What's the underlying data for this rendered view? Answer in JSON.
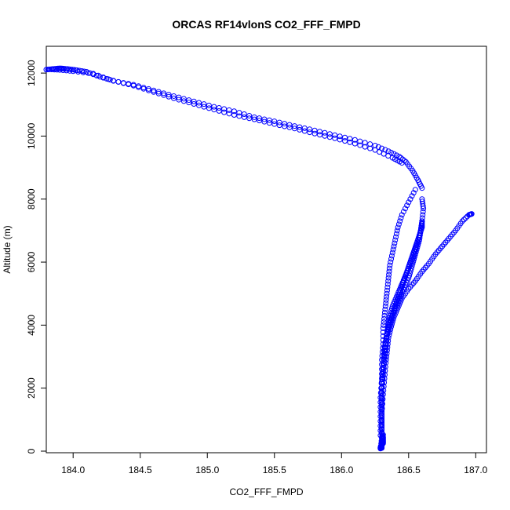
{
  "chart_data": {
    "type": "scatter",
    "title": "ORCAS RF14vlonS CO2_FFF_FMPD",
    "xlabel": "CO2_FFF_FMPD",
    "ylabel": "Altitude (m)",
    "xlim": [
      183.8,
      187.08
    ],
    "ylim": [
      -50,
      12850
    ],
    "xticks": [
      "184.0",
      "184.5",
      "185.0",
      "185.5",
      "186.0",
      "186.5",
      "187.0"
    ],
    "yticks": [
      "0",
      "2000",
      "4000",
      "6000",
      "8000",
      "10000",
      "12000"
    ],
    "grid": false,
    "legend": "none",
    "marker": "open-circle",
    "color": "#0000ff",
    "series": [
      {
        "x": [
          183.8,
          183.85,
          183.9,
          183.93,
          183.98,
          184.03,
          184.1,
          184.2,
          184.3,
          184.45,
          184.6,
          184.75,
          184.9,
          185.05,
          185.2,
          185.35,
          185.5,
          185.65,
          185.8,
          185.95,
          186.1,
          186.25,
          186.38,
          186.45
        ],
        "y": [
          12110,
          12130,
          12150,
          12140,
          12120,
          12090,
          12040,
          11880,
          11760,
          11600,
          11400,
          11200,
          11020,
          10840,
          10670,
          10530,
          10380,
          10240,
          10080,
          9930,
          9760,
          9560,
          9310,
          9150
        ]
      },
      {
        "x": [
          183.82,
          183.9,
          184.0,
          184.15,
          184.3,
          184.45,
          184.6,
          184.75,
          184.9,
          185.05,
          185.2,
          185.35,
          185.5,
          185.65,
          185.8,
          185.95,
          186.1,
          186.25,
          186.35,
          186.43,
          186.48,
          186.53,
          186.57,
          186.6
        ],
        "y": [
          12120,
          12100,
          12060,
          11980,
          11750,
          11630,
          11450,
          11270,
          11100,
          10930,
          10790,
          10600,
          10470,
          10320,
          10180,
          10030,
          9880,
          9700,
          9520,
          9350,
          9180,
          8900,
          8600,
          8350
        ]
      },
      {
        "x": [
          186.6,
          186.61,
          186.6,
          186.59,
          186.58,
          186.56,
          186.54,
          186.52,
          186.5,
          186.47,
          186.44,
          186.41,
          186.38,
          186.36,
          186.34,
          186.32,
          186.31,
          186.3,
          186.3,
          186.3
        ],
        "y": [
          8000,
          7700,
          7300,
          7000,
          6700,
          6400,
          6100,
          5800,
          5500,
          5200,
          4900,
          4600,
          4300,
          4000,
          3700,
          3300,
          2800,
          2200,
          1500,
          800
        ]
      },
      {
        "x": [
          186.55,
          186.5,
          186.45,
          186.42,
          186.4,
          186.38,
          186.36,
          186.35,
          186.34,
          186.33,
          186.32,
          186.31,
          186.31,
          186.3,
          186.3,
          186.29,
          186.29,
          186.29
        ],
        "y": [
          8300,
          7900,
          7500,
          7100,
          6700,
          6300,
          5900,
          5500,
          5100,
          4700,
          4300,
          3900,
          3400,
          2900,
          2300,
          1700,
          1100,
          500
        ]
      },
      {
        "x": [
          186.6,
          186.6,
          186.58,
          186.56,
          186.54,
          186.52,
          186.5,
          186.48,
          186.46,
          186.44,
          186.42,
          186.4,
          186.38,
          186.36,
          186.34,
          186.33,
          186.32,
          186.31,
          186.3,
          186.3,
          186.3,
          186.3
        ],
        "y": [
          7300,
          7100,
          6850,
          6600,
          6350,
          6100,
          5850,
          5600,
          5350,
          5100,
          4850,
          4600,
          4350,
          4100,
          3800,
          3500,
          3100,
          2600,
          2000,
          1400,
          800,
          300
        ]
      },
      {
        "x": [
          186.6,
          186.59,
          186.57,
          186.55,
          186.53,
          186.5,
          186.47,
          186.44,
          186.41,
          186.38,
          186.36,
          186.35,
          186.34,
          186.33,
          186.32,
          186.31,
          186.3,
          186.3,
          186.3,
          186.3
        ],
        "y": [
          7300,
          7000,
          6700,
          6400,
          6100,
          5800,
          5500,
          5200,
          4900,
          4600,
          4300,
          4000,
          3700,
          3300,
          2900,
          2400,
          1900,
          1300,
          700,
          200
        ]
      },
      {
        "x": [
          186.97,
          186.95,
          186.9,
          186.85,
          186.8,
          186.75,
          186.7,
          186.65,
          186.6,
          186.55,
          186.5,
          186.45,
          186.42,
          186.39,
          186.37,
          186.35,
          186.34,
          186.33,
          186.32,
          186.31,
          186.3,
          186.3
        ],
        "y": [
          7530,
          7500,
          7300,
          7000,
          6750,
          6500,
          6250,
          5950,
          5700,
          5400,
          5150,
          4850,
          4550,
          4250,
          3950,
          3600,
          3200,
          2800,
          2300,
          1800,
          1200,
          600
        ]
      },
      {
        "x": [
          186.3,
          186.3,
          186.3,
          186.31,
          186.31,
          186.31,
          186.3,
          186.3,
          186.29,
          186.29,
          186.3,
          186.31
        ],
        "y": [
          100,
          150,
          200,
          250,
          350,
          450,
          300,
          180,
          120,
          80,
          400,
          520
        ]
      }
    ]
  }
}
